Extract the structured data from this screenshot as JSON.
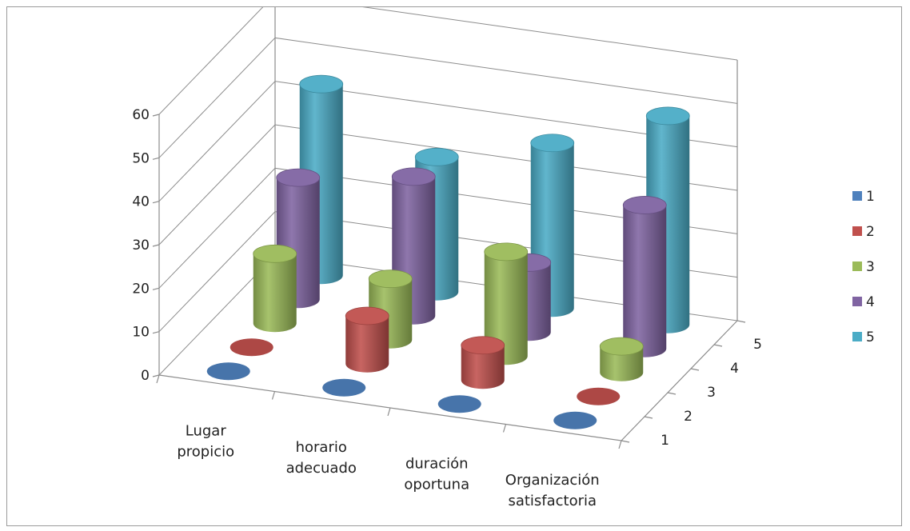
{
  "chart_data": {
    "type": "bar",
    "subtype": "3d-cylinder",
    "title": "",
    "xlabel": "",
    "ylabel": "",
    "ylim": [
      0,
      60
    ],
    "yticks": [
      "0",
      "10",
      "20",
      "30",
      "40",
      "50",
      "60"
    ],
    "depth_ticks": [
      "1",
      "2",
      "3",
      "4",
      "5"
    ],
    "categories": [
      "Lugar propicio",
      "horario adecuado",
      "duración oportuna",
      "Organización satisfactoria"
    ],
    "category_lines": [
      [
        "Lugar",
        "propicio"
      ],
      [
        "horario",
        "adecuado"
      ],
      [
        "duración",
        "oportuna"
      ],
      [
        "Organización",
        "satisfactoria"
      ]
    ],
    "grid": true,
    "legend_position": "right",
    "series": [
      {
        "name": "1",
        "color": "#4f81bd",
        "values": [
          0,
          0,
          0,
          0
        ]
      },
      {
        "name": "2",
        "color": "#c0504d",
        "values": [
          0,
          11,
          8,
          0
        ]
      },
      {
        "name": "3",
        "color": "#9bbb59",
        "values": [
          16,
          14,
          24,
          6
        ]
      },
      {
        "name": "4",
        "color": "#8064a2",
        "values": [
          28,
          32,
          16,
          33
        ]
      },
      {
        "name": "5",
        "color": "#4bacc6",
        "values": [
          44,
          31,
          38,
          48
        ]
      }
    ]
  }
}
